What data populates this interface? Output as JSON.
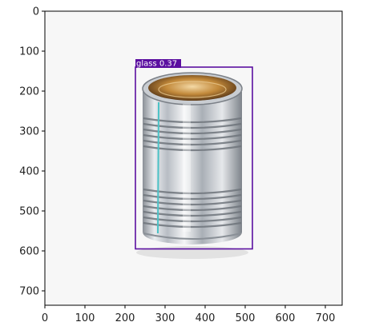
{
  "plot": {
    "x_ticks": [
      "0",
      "100",
      "200",
      "300",
      "400",
      "500",
      "600",
      "700"
    ],
    "y_ticks": [
      "0",
      "100",
      "200",
      "300",
      "400",
      "500",
      "600",
      "700"
    ]
  },
  "detection": {
    "label": "glass 0.37",
    "class_name": "glass",
    "confidence": 0.37,
    "box_color": "#5b0fa0",
    "box_data": {
      "x1": 226,
      "y1": 140,
      "x2": 518,
      "y2": 595
    }
  },
  "colors": {
    "background": "#f7f7f7",
    "can_silver": "#cfd3d8",
    "can_interior": "#b57a2c",
    "seam": "#4bc2c6"
  }
}
